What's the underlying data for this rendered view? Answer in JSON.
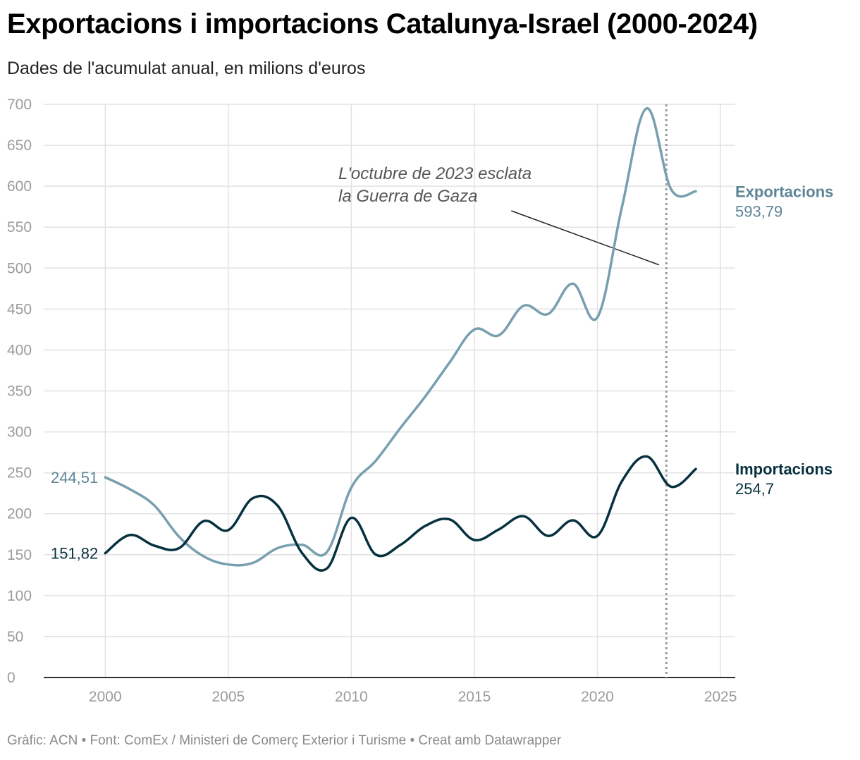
{
  "header": {
    "title": "Exportacions i importacions Catalunya-Israel (2000-2024)",
    "subtitle": "Dades de l'acumulat anual, en milions d'euros"
  },
  "footer": {
    "text": "Gràfic: ACN • Font: ComEx / Ministeri de Comerç Exterior i Turisme  • Creat amb Datawrapper"
  },
  "colors": {
    "exportacions": "#789faf",
    "exportacions_label": "#5e8596",
    "importacions": "#07313f",
    "grid": "#e2e2e2",
    "axis": "#333333",
    "reference_line": "#999999"
  },
  "chart_data": {
    "type": "line",
    "title": "Exportacions i importacions Catalunya-Israel (2000-2024)",
    "subtitle": "Dades de l'acumulat anual, en milions d'euros",
    "xlabel": "",
    "ylabel": "",
    "xlim": [
      1997.5,
      2025.6
    ],
    "ylim": [
      0,
      700
    ],
    "grid": true,
    "x_ticks": [
      2000,
      2005,
      2010,
      2015,
      2020,
      2025
    ],
    "x_tick_labels": [
      "2000",
      "2005",
      "2010",
      "2015",
      "2020",
      "2025"
    ],
    "y_ticks": [
      0,
      50,
      100,
      150,
      200,
      250,
      300,
      350,
      400,
      450,
      500,
      550,
      600,
      650,
      700
    ],
    "y_tick_labels": [
      "0",
      "50",
      "100",
      "150",
      "200",
      "250",
      "300",
      "350",
      "400",
      "450",
      "500",
      "550",
      "600",
      "650",
      "700"
    ],
    "x": [
      2000,
      2001,
      2002,
      2003,
      2004,
      2005,
      2006,
      2007,
      2008,
      2009,
      2010,
      2011,
      2012,
      2013,
      2014,
      2015,
      2016,
      2017,
      2018,
      2019,
      2020,
      2021,
      2022,
      2023,
      2024
    ],
    "series": [
      {
        "name": "Exportacions",
        "end_value_label": "593,79",
        "start_value_label": "244,51",
        "values": [
          244.51,
          230,
          210,
          172,
          148,
          138,
          140,
          158,
          162,
          153,
          232,
          265,
          305,
          343,
          385,
          425,
          418,
          454,
          444,
          481,
          440,
          575,
          695,
          596,
          593.79
        ]
      },
      {
        "name": "Importacions",
        "end_value_label": "254,7",
        "start_value_label": "151,82",
        "values": [
          151.82,
          174,
          161,
          158,
          191,
          180,
          219,
          210,
          152,
          133,
          195,
          150,
          162,
          185,
          193,
          168,
          181,
          197,
          173,
          192,
          173,
          240,
          270,
          233,
          254.7
        ]
      }
    ],
    "reference_line": {
      "x": 2022.8,
      "style": "dotted"
    },
    "annotation": {
      "lines": [
        "L'octubre de 2023 esclata",
        "la Guerra de Gaza"
      ],
      "from": {
        "x": 2016.5,
        "y": 570
      },
      "to": {
        "x": 2022.5,
        "y": 504
      }
    }
  }
}
